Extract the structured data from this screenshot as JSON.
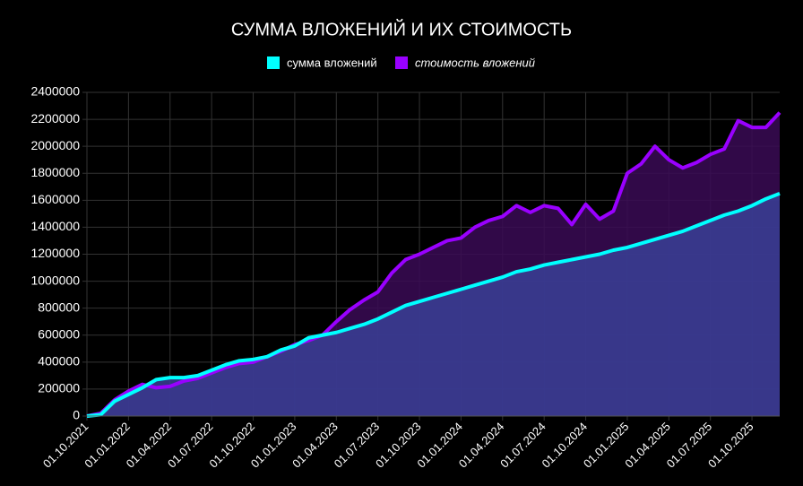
{
  "chart_data": {
    "type": "area",
    "title": "СУММА ВЛОЖЕНИЙ И ИХ СТОИМОСТЬ",
    "categories": [
      "01.10.2021",
      null,
      null,
      "01.01.2022",
      null,
      null,
      "01.04.2022",
      null,
      null,
      "01.07.2022",
      null,
      null,
      "01.10.2022",
      null,
      null,
      "01.01.2023",
      null,
      null,
      "01.04.2023",
      null,
      null,
      "01.07.2023",
      null,
      null,
      "01.10.2023",
      null,
      null,
      "01.01.2024",
      null,
      null,
      "01.04.2024",
      null,
      null,
      "01.07.2024",
      null,
      null,
      "01.10.2024",
      null,
      null,
      "01.01.2025",
      null,
      null,
      "01.04.2025",
      null,
      null,
      "01.07.2025",
      null,
      null,
      "01.10.2025",
      null,
      null
    ],
    "series": [
      {
        "name": "сумма вложений",
        "color": "#00ffff",
        "fill": "#3a3f96",
        "values": [
          0,
          10000,
          110000,
          160000,
          210000,
          270000,
          285000,
          285000,
          300000,
          340000,
          380000,
          410000,
          420000,
          440000,
          490000,
          520000,
          580000,
          600000,
          620000,
          650000,
          680000,
          720000,
          770000,
          820000,
          850000,
          880000,
          910000,
          940000,
          970000,
          1000000,
          1030000,
          1070000,
          1090000,
          1120000,
          1140000,
          1160000,
          1180000,
          1200000,
          1230000,
          1250000,
          1280000,
          1310000,
          1340000,
          1370000,
          1410000,
          1450000,
          1490000,
          1520000,
          1560000,
          1610000,
          1650000
        ]
      },
      {
        "name": "стоимость вложений",
        "color": "#9900ff",
        "fill": "#3a0a55",
        "values": [
          0,
          20000,
          120000,
          185000,
          235000,
          210000,
          220000,
          260000,
          280000,
          320000,
          360000,
          390000,
          400000,
          440000,
          480000,
          530000,
          560000,
          600000,
          700000,
          790000,
          860000,
          920000,
          1060000,
          1160000,
          1200000,
          1250000,
          1300000,
          1320000,
          1400000,
          1450000,
          1480000,
          1560000,
          1510000,
          1560000,
          1540000,
          1420000,
          1570000,
          1460000,
          1520000,
          1800000,
          1870000,
          2000000,
          1900000,
          1840000,
          1880000,
          1940000,
          1980000,
          2190000,
          2140000,
          2140000,
          2250000
        ]
      }
    ],
    "ylim": [
      0,
      2400000
    ],
    "yticks": [
      0,
      200000,
      400000,
      600000,
      800000,
      1000000,
      1200000,
      1400000,
      1600000,
      1800000,
      2000000,
      2200000,
      2400000
    ],
    "grid": true
  }
}
